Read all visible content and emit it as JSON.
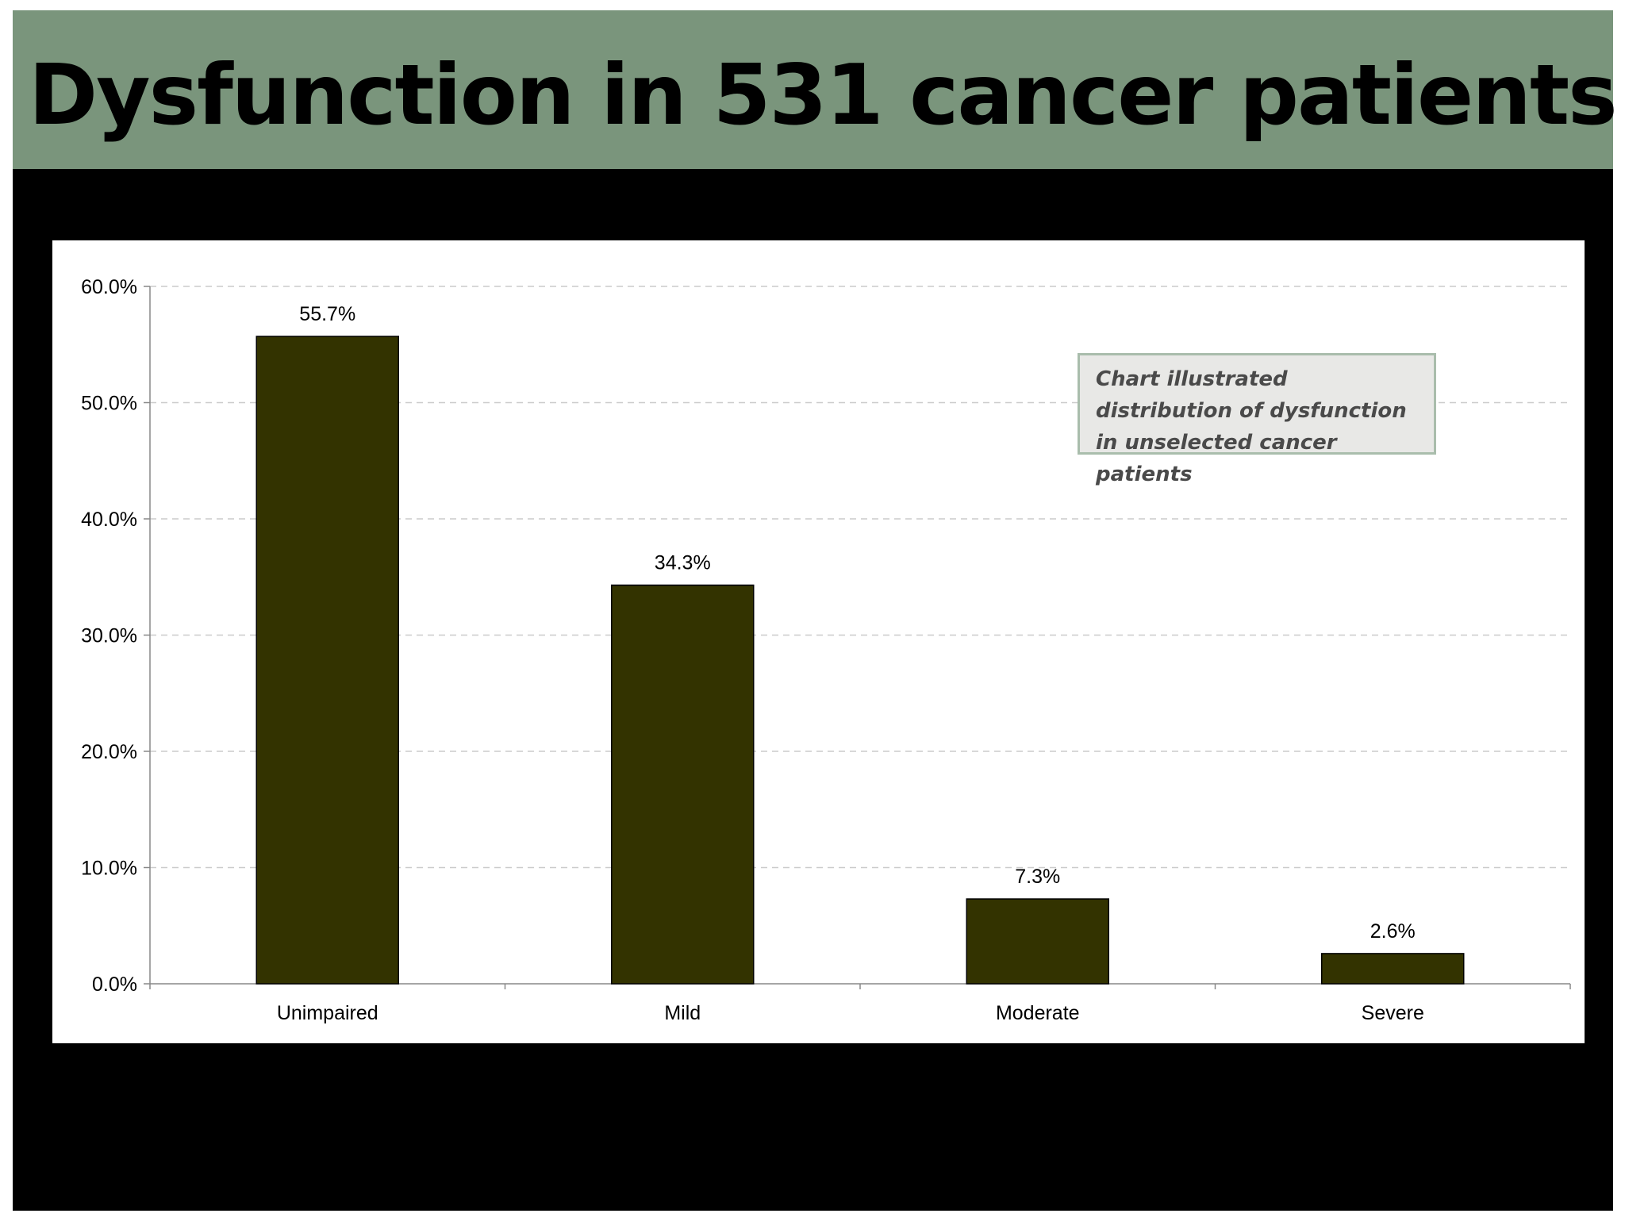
{
  "slide": {
    "title": "Dysfunction in 531 cancer patients",
    "title_bar_color": "#7a957c",
    "background_color": "#000000"
  },
  "annotation": {
    "text": "Chart illustrated distribution of dysfunction in unselected cancer patients"
  },
  "chart_data": {
    "type": "bar",
    "title": "",
    "xlabel": "",
    "ylabel": "",
    "categories": [
      "Unimpaired",
      "Mild",
      "Moderate",
      "Severe"
    ],
    "values": [
      55.7,
      34.3,
      7.3,
      2.6
    ],
    "data_labels": [
      "55.7%",
      "34.3%",
      "7.3%",
      "2.6%"
    ],
    "ylim": [
      0,
      60
    ],
    "y_ticks": [
      0,
      10,
      20,
      30,
      40,
      50,
      60
    ],
    "y_tick_labels": [
      "0.0%",
      "10.0%",
      "20.0%",
      "30.0%",
      "40.0%",
      "50.0%",
      "60.0%"
    ],
    "grid": true,
    "bar_color": "#333300",
    "grid_color": "#cccccc"
  }
}
